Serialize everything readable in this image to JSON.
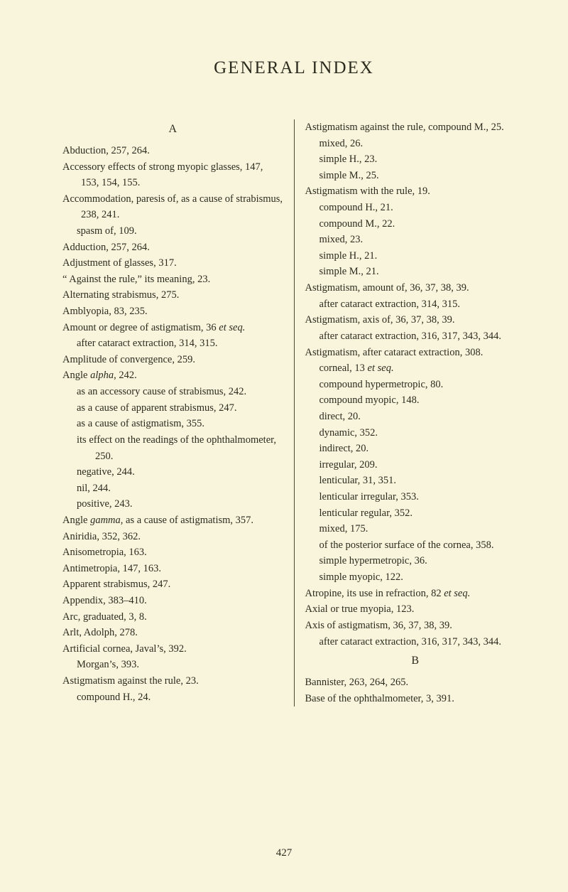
{
  "page": {
    "title": "GENERAL INDEX",
    "page_number": "427",
    "background_color": "#f9f5dd",
    "text_color": "#2b2b1e"
  },
  "left_column": {
    "section_letter": "A",
    "lines": [
      {
        "cls": "entry",
        "html": "Abduction, 257, 264."
      },
      {
        "cls": "entry",
        "html": "Accessory effects of strong myopic glasses, 147, 153, 154, 155."
      },
      {
        "cls": "entry",
        "html": "Accommodation, paresis of, as a cause of strabismus, 238, 241."
      },
      {
        "cls": "sub1",
        "html": "spasm of, 109."
      },
      {
        "cls": "entry",
        "html": "Adduction, 257, 264."
      },
      {
        "cls": "entry",
        "html": "Adjustment of glasses, 317."
      },
      {
        "cls": "entry",
        "html": "“ Against the rule,” its meaning, 23."
      },
      {
        "cls": "entry",
        "html": "Alternating strabismus, 275."
      },
      {
        "cls": "entry",
        "html": "Amblyopia, 83, 235."
      },
      {
        "cls": "entry",
        "html": "Amount or degree of astigmatism, 36 <em>et seq.</em>"
      },
      {
        "cls": "sub1",
        "html": "after cataract extraction, 314, 315."
      },
      {
        "cls": "entry",
        "html": "Amplitude of convergence, 259."
      },
      {
        "cls": "entry",
        "html": "Angle <em>alpha</em>, 242."
      },
      {
        "cls": "sub1",
        "html": "as an accessory cause of strabismus, 242."
      },
      {
        "cls": "sub1",
        "html": "as a cause of apparent strabismus, 247."
      },
      {
        "cls": "sub1",
        "html": "as a cause of astigmatism, 355."
      },
      {
        "cls": "sub1",
        "html": "its effect on the readings of the ophthalmometer, 250."
      },
      {
        "cls": "sub1",
        "html": "negative, 244."
      },
      {
        "cls": "sub1",
        "html": "nil, 244."
      },
      {
        "cls": "sub1",
        "html": "positive, 243."
      },
      {
        "cls": "entry",
        "html": "Angle <em>gamma</em>, as a cause of astigmatism, 357."
      },
      {
        "cls": "entry",
        "html": "Aniridia, 352, 362."
      },
      {
        "cls": "entry",
        "html": "Anisometropia, 163."
      },
      {
        "cls": "entry",
        "html": "Antimetropia, 147, 163."
      },
      {
        "cls": "entry",
        "html": "Apparent strabismus, 247."
      },
      {
        "cls": "entry",
        "html": "Appendix, 383–410."
      },
      {
        "cls": "entry",
        "html": "Arc, graduated, 3, 8."
      },
      {
        "cls": "entry",
        "html": "Arlt, Adolph, 278."
      },
      {
        "cls": "entry",
        "html": "Artificial cornea, Javal’s, 392."
      },
      {
        "cls": "sub1",
        "html": "Morgan’s, 393."
      },
      {
        "cls": "entry",
        "html": "Astigmatism against the rule, 23."
      },
      {
        "cls": "sub1",
        "html": "compound H., 24."
      }
    ]
  },
  "right_column": {
    "lines": [
      {
        "cls": "entry",
        "html": "Astigmatism against the rule, compound M., 25."
      },
      {
        "cls": "sub1",
        "html": "mixed, 26."
      },
      {
        "cls": "sub1",
        "html": "simple H., 23."
      },
      {
        "cls": "sub1",
        "html": "simple M., 25."
      },
      {
        "cls": "entry",
        "html": "Astigmatism with the rule, 19."
      },
      {
        "cls": "sub1",
        "html": "compound H., 21."
      },
      {
        "cls": "sub1",
        "html": "compound M., 22."
      },
      {
        "cls": "sub1",
        "html": "mixed, 23."
      },
      {
        "cls": "sub1",
        "html": "simple H., 21."
      },
      {
        "cls": "sub1",
        "html": "simple M., 21."
      },
      {
        "cls": "entry",
        "html": "Astigmatism, amount of, 36, 37, 38, 39."
      },
      {
        "cls": "sub1",
        "html": "after cataract extraction, 314, 315."
      },
      {
        "cls": "entry",
        "html": "Astigmatism, axis of, 36, 37, 38, 39."
      },
      {
        "cls": "sub1",
        "html": "after cataract extraction, 316, 317, 343, 344."
      },
      {
        "cls": "entry",
        "html": "Astigmatism, after cataract extraction, 308."
      },
      {
        "cls": "sub1",
        "html": "corneal, 13 <em>et seq.</em>"
      },
      {
        "cls": "sub1",
        "html": "compound hypermetropic, 80."
      },
      {
        "cls": "sub1",
        "html": "compound myopic, 148."
      },
      {
        "cls": "sub1",
        "html": "direct, 20."
      },
      {
        "cls": "sub1",
        "html": "dynamic, 352."
      },
      {
        "cls": "sub1",
        "html": "indirect, 20."
      },
      {
        "cls": "sub1",
        "html": "irregular, 209."
      },
      {
        "cls": "sub1",
        "html": "lenticular, 31, 351."
      },
      {
        "cls": "sub1",
        "html": "lenticular irregular, 353."
      },
      {
        "cls": "sub1",
        "html": "lenticular regular, 352."
      },
      {
        "cls": "sub1",
        "html": "mixed, 175."
      },
      {
        "cls": "sub1",
        "html": "of the posterior surface of the cornea, 358."
      },
      {
        "cls": "sub1",
        "html": "simple hypermetropic, 36."
      },
      {
        "cls": "sub1",
        "html": "simple myopic, 122."
      },
      {
        "cls": "entry",
        "html": "Atropine, its use in refraction, 82 <em>et seq.</em>"
      },
      {
        "cls": "entry",
        "html": "Axial or true myopia, 123."
      },
      {
        "cls": "entry",
        "html": "Axis of astigmatism, 36, 37, 38, 39."
      },
      {
        "cls": "sub1",
        "html": "after cataract extraction, 316, 317, 343, 344."
      }
    ],
    "section_letter": "B",
    "b_lines": [
      {
        "cls": "entry",
        "html": "Bannister, 263, 264, 265."
      },
      {
        "cls": "entry",
        "html": "Base of the ophthalmometer, 3, 391."
      }
    ]
  }
}
